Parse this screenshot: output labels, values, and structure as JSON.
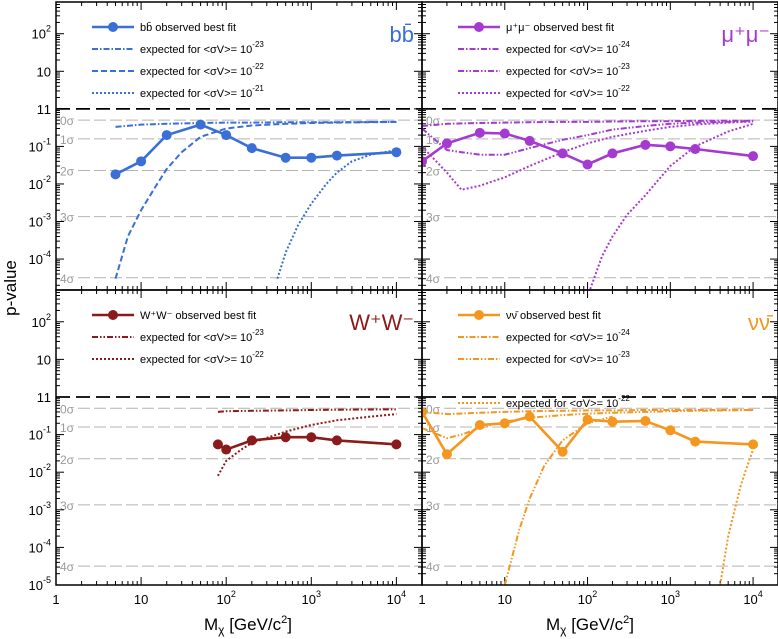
{
  "figure": {
    "ylabel": "p-value",
    "xlabel_main": "M",
    "xlabel_sub": "χ",
    "xlabel_rest": " [GeV/c",
    "xlabel_sup": "2",
    "xlabel_end": "]",
    "one_line_label": "1"
  },
  "axes": {
    "x_ticks": [
      {
        "v": 1,
        "base": "1",
        "exp": ""
      },
      {
        "v": 10,
        "base": "10",
        "exp": ""
      },
      {
        "v": 100,
        "base": "10",
        "exp": "2"
      },
      {
        "v": 1000,
        "base": "10",
        "exp": "3"
      },
      {
        "v": 10000,
        "base": "10",
        "exp": "4"
      }
    ],
    "y_ticks": [
      {
        "v": 1e-05,
        "base": "10",
        "exp": "-5"
      },
      {
        "v": 0.0001,
        "base": "10",
        "exp": "-4"
      },
      {
        "v": 0.001,
        "base": "10",
        "exp": "-3"
      },
      {
        "v": 0.01,
        "base": "10",
        "exp": "-2"
      },
      {
        "v": 0.1,
        "base": "10",
        "exp": "-1"
      },
      {
        "v": 1,
        "base": "1",
        "exp": ""
      },
      {
        "v": 10,
        "base": "10",
        "exp": ""
      },
      {
        "v": 100,
        "base": "10",
        "exp": "2"
      }
    ],
    "sigma_lines": [
      {
        "label": "0σ",
        "p": 0.5
      },
      {
        "label": "1σ",
        "p": 0.1587
      },
      {
        "label": "2σ",
        "p": 0.02275
      },
      {
        "label": "3σ",
        "p": 0.00135
      },
      {
        "label": "4σ",
        "p": 3.17e-05
      }
    ]
  },
  "colors": {
    "bb": "#3a6fd6",
    "mumu": "#a43ad0",
    "ww": "#8b1a1a",
    "nunu": "#f5961e",
    "frame": "#000000",
    "sigma": "#b4b4b4"
  },
  "chart_data": [
    {
      "type": "line",
      "panel": "top-left",
      "channel_label": "bb̄",
      "xlog": true,
      "ylog": true,
      "xlim": [
        1,
        20000
      ],
      "ylim_top": [
        1.5e-05,
        700
      ],
      "series": [
        {
          "name": "bb̄ observed best fit",
          "style": "solid",
          "x": [
            5,
            10,
            20,
            50,
            100,
            200,
            500,
            1000,
            2000,
            10000
          ],
          "y": [
            0.018,
            0.04,
            0.2,
            0.38,
            0.2,
            0.09,
            0.05,
            0.05,
            0.057,
            0.07
          ]
        },
        {
          "name_prefix": "expected for <σV>= 10",
          "name_exp": "-23",
          "style": "dashdot",
          "x": [
            5,
            10,
            20,
            50,
            100,
            200,
            500,
            1000,
            2000,
            10000
          ],
          "y": [
            0.33,
            0.38,
            0.4,
            0.42,
            0.43,
            0.43,
            0.44,
            0.44,
            0.44,
            0.45
          ]
        },
        {
          "name_prefix": "expected for <σV>= 10",
          "name_exp": "-22",
          "style": "dashed",
          "x": [
            5,
            7,
            10,
            15,
            20,
            30,
            50,
            100,
            200,
            500,
            1000,
            2000,
            10000
          ],
          "y": [
            3e-05,
            0.0004,
            0.002,
            0.009,
            0.025,
            0.07,
            0.18,
            0.3,
            0.36,
            0.4,
            0.42,
            0.43,
            0.45
          ]
        },
        {
          "name_prefix": "expected for <σV>= 10",
          "name_exp": "-21",
          "style": "dotted",
          "x": [
            400,
            500,
            700,
            1000,
            1500,
            2000,
            3000,
            5000,
            10000
          ],
          "y": [
            3e-05,
            0.00015,
            0.0008,
            0.003,
            0.01,
            0.02,
            0.04,
            0.06,
            0.08
          ]
        }
      ]
    },
    {
      "type": "line",
      "panel": "top-right",
      "channel_label": "μ⁺μ⁻",
      "xlog": true,
      "ylog": true,
      "series": [
        {
          "name": "μ⁺μ⁻ observed best fit",
          "style": "solid",
          "x": [
            1,
            2,
            5,
            10,
            20,
            50,
            100,
            200,
            500,
            1000,
            2000,
            10000
          ],
          "y": [
            0.04,
            0.12,
            0.23,
            0.22,
            0.14,
            0.065,
            0.033,
            0.065,
            0.11,
            0.1,
            0.085,
            0.055
          ]
        },
        {
          "name_prefix": "expected for <σV>= 10",
          "name_exp": "-24",
          "style": "dashdot",
          "x": [
            1,
            2,
            5,
            10,
            20,
            50,
            100,
            200,
            500,
            1000,
            2000,
            5000,
            10000
          ],
          "y": [
            0.35,
            0.4,
            0.42,
            0.43,
            0.44,
            0.45,
            0.45,
            0.46,
            0.47,
            0.47,
            0.48,
            0.48,
            0.48
          ]
        },
        {
          "name_prefix": "expected for <σV>= 10",
          "name_exp": "-23",
          "style": "dashdotdot",
          "x": [
            1,
            2,
            3,
            5,
            10,
            20,
            50,
            100,
            200,
            500,
            1000,
            2000,
            10000
          ],
          "y": [
            0.3,
            0.08,
            0.07,
            0.06,
            0.06,
            0.09,
            0.15,
            0.2,
            0.28,
            0.35,
            0.4,
            0.43,
            0.47
          ]
        },
        {
          "name_prefix": "expected for <σV>= 10",
          "name_exp": "-22",
          "style": "dotted",
          "x": [
            1,
            2,
            3,
            5,
            10,
            20,
            50,
            100,
            200,
            500,
            1000,
            2000,
            5000,
            10000
          ],
          "y": [
            0.1,
            0.02,
            0.007,
            0.009,
            0.015,
            0.03,
            0.07,
            0.12,
            0.18,
            0.26,
            0.33,
            0.38,
            0.43,
            0.46
          ]
        },
        {
          "name": "",
          "style": "dotted",
          "x": [
            100,
            150,
            200,
            300,
            500,
            700,
            1000,
            2000,
            5000,
            10000
          ],
          "y": [
            1e-05,
            0.00012,
            0.0004,
            0.0015,
            0.005,
            0.012,
            0.03,
            0.1,
            0.25,
            0.4
          ]
        }
      ]
    },
    {
      "type": "line",
      "panel": "bottom-left",
      "channel_label": "W⁺W⁻",
      "xlog": true,
      "ylog": true,
      "series": [
        {
          "name": "W⁺W⁻ observed best fit",
          "style": "solid",
          "x": [
            80,
            100,
            200,
            500,
            1000,
            2000,
            10000
          ],
          "y": [
            0.055,
            0.04,
            0.07,
            0.085,
            0.085,
            0.07,
            0.055
          ]
        },
        {
          "name_prefix": "expected for <σV>= 10",
          "name_exp": "-23",
          "style": "dashdotdot",
          "x": [
            80,
            100,
            200,
            500,
            1000,
            2000,
            10000
          ],
          "y": [
            0.4,
            0.42,
            0.43,
            0.44,
            0.45,
            0.46,
            0.47
          ]
        },
        {
          "name_prefix": "expected for <σV>= 10",
          "name_exp": "-22",
          "style": "dotted",
          "x": [
            80,
            100,
            150,
            200,
            500,
            1000,
            2000,
            5000,
            10000
          ],
          "y": [
            0.008,
            0.02,
            0.04,
            0.06,
            0.12,
            0.18,
            0.24,
            0.3,
            0.35
          ]
        }
      ]
    },
    {
      "type": "line",
      "panel": "bottom-right",
      "channel_label": "νν̄",
      "xlog": true,
      "ylog": true,
      "xlim": [
        1,
        20000
      ],
      "ylim_bottom": [
        1e-05,
        700
      ],
      "series": [
        {
          "name": "νν̄ observed best fit",
          "style": "solid",
          "x": [
            1,
            2,
            5,
            10,
            20,
            50,
            100,
            200,
            500,
            1000,
            2000,
            10000
          ],
          "y": [
            0.4,
            0.03,
            0.18,
            0.2,
            0.3,
            0.035,
            0.25,
            0.22,
            0.23,
            0.13,
            0.065,
            0.055
          ]
        },
        {
          "name_prefix": "expected for <σV>= 10",
          "name_exp": "-24",
          "style": "dashdot",
          "x": [
            1,
            2,
            5,
            10,
            20,
            50,
            100,
            200,
            500,
            1000,
            2000,
            5000,
            10000
          ],
          "y": [
            0.4,
            0.35,
            0.38,
            0.4,
            0.42,
            0.43,
            0.44,
            0.44,
            0.45,
            0.45,
            0.45,
            0.45,
            0.45
          ]
        },
        {
          "name_prefix": "expected for <σV>= 10",
          "name_exp": "-23",
          "style": "dashdotdot",
          "x": [
            1,
            2,
            3,
            5,
            10,
            20,
            50,
            100,
            200,
            500,
            1000,
            2000,
            5000,
            10000
          ],
          "y": [
            0.15,
            0.08,
            0.1,
            0.15,
            0.22,
            0.28,
            0.33,
            0.36,
            0.38,
            0.4,
            0.42,
            0.43,
            0.44,
            0.45
          ]
        },
        {
          "name": "",
          "style": "dashdotdot",
          "x": [
            10,
            15,
            20,
            30,
            50,
            100,
            200
          ],
          "y": [
            1e-05,
            0.0003,
            0.002,
            0.015,
            0.07,
            0.2,
            0.3
          ]
        },
        {
          "name_prefix": "expected for <σV>= 10",
          "name_exp": "-22",
          "style": "dotted",
          "x": [
            4000,
            5000,
            6000,
            7000,
            8000,
            10000
          ],
          "y": [
            1e-05,
            0.0002,
            0.001,
            0.004,
            0.01,
            0.04
          ]
        }
      ]
    }
  ]
}
